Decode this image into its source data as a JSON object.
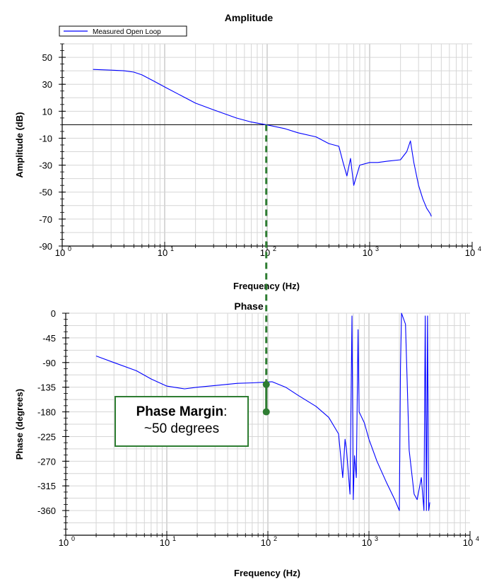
{
  "chart_data": [
    {
      "type": "line",
      "title": "Amplitude",
      "xlabel": "Frequency (Hz)",
      "ylabel": "Amplitude (dB)",
      "xscale": "log",
      "xlim": [
        1,
        10000
      ],
      "ylim": [
        -90,
        60
      ],
      "yticks": [
        50,
        30,
        10,
        -10,
        -30,
        -50,
        -70,
        -90
      ],
      "xticks": [
        {
          "base": "10",
          "exp": "0"
        },
        {
          "base": "10",
          "exp": "1"
        },
        {
          "base": "10",
          "exp": "2"
        },
        {
          "base": "10",
          "exp": "3"
        },
        {
          "base": "10",
          "exp": "4"
        }
      ],
      "grid": true,
      "legend": {
        "position": "top-left",
        "entries": [
          "Measured Open Loop"
        ]
      },
      "reference_line_y": 0,
      "crossover_frequency": 98,
      "series": [
        {
          "name": "Measured Open Loop",
          "color": "#0000ff",
          "x": [
            2,
            3,
            4,
            5,
            6,
            8,
            10,
            15,
            20,
            30,
            50,
            70,
            98,
            150,
            200,
            300,
            400,
            500,
            550,
            600,
            650,
            700,
            800,
            1000,
            1200,
            1500,
            2000,
            2300,
            2500,
            2700,
            3000,
            3300,
            3600,
            3900,
            4000
          ],
          "y": [
            41,
            40.5,
            40,
            39,
            37,
            32,
            28,
            21,
            16,
            11,
            5,
            2,
            0,
            -3,
            -6,
            -9,
            -14,
            -16,
            -28,
            -38,
            -25,
            -45,
            -30,
            -28,
            -28,
            -27,
            -26,
            -20,
            -12,
            -28,
            -45,
            -55,
            -62,
            -66,
            -68
          ]
        }
      ]
    },
    {
      "type": "line",
      "title": "Phase",
      "xlabel": "Frequency (Hz)",
      "ylabel": "Phase (degrees)",
      "xscale": "log",
      "xlim": [
        1,
        10000
      ],
      "ylim": [
        -405,
        0
      ],
      "yticks": [
        0,
        -45,
        -90,
        -135,
        -180,
        -225,
        -270,
        -315,
        -360
      ],
      "xticks": [
        {
          "base": "10",
          "exp": "0"
        },
        {
          "base": "10",
          "exp": "1"
        },
        {
          "base": "10",
          "exp": "2"
        },
        {
          "base": "10",
          "exp": "3"
        },
        {
          "base": "10",
          "exp": "4"
        }
      ],
      "grid": true,
      "phase_at_crossover": -130,
      "reference_phase": -180,
      "series": [
        {
          "name": "Measured Open Loop",
          "color": "#0000ff",
          "x": [
            2,
            3,
            5,
            7,
            10,
            15,
            20,
            30,
            50,
            70,
            90,
            110,
            150,
            200,
            300,
            400,
            500,
            550,
            580,
            600,
            650,
            680,
            700,
            720,
            750,
            780,
            800,
            900,
            1000,
            1200,
            1500,
            1800,
            2000,
            2050,
            2100,
            2300,
            2500,
            2800,
            3000,
            3300,
            3500,
            3600,
            3700,
            3800,
            3900,
            4000
          ],
          "y": [
            -78,
            -90,
            -105,
            -120,
            -133,
            -138,
            -135,
            -132,
            -128,
            -127,
            -126,
            -125,
            -135,
            -150,
            -170,
            -190,
            -220,
            -300,
            -230,
            -250,
            -330,
            -5,
            -340,
            -260,
            -300,
            -30,
            -180,
            -200,
            -230,
            -270,
            -310,
            -340,
            -360,
            -100,
            0,
            -20,
            -250,
            -330,
            -340,
            -300,
            -360,
            -5,
            -360,
            -5,
            -360,
            -345
          ]
        }
      ]
    }
  ],
  "annotation": {
    "title": "Phase Margin",
    "suffix": ":",
    "text": "~50 degrees",
    "color": "#2e7d32"
  }
}
